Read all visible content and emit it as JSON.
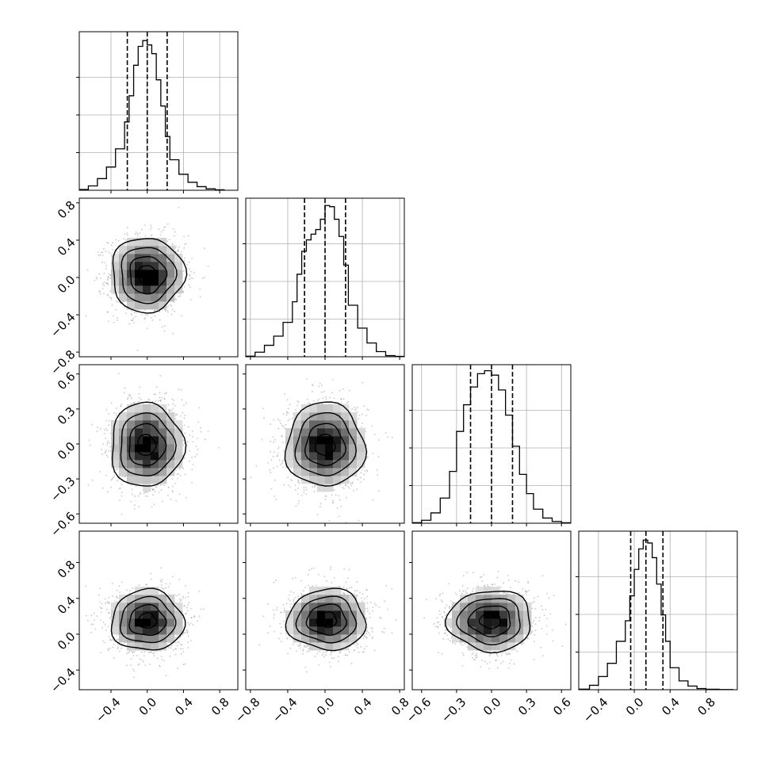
{
  "chart_data": {
    "type": "corner",
    "n_params": 4,
    "grid": true,
    "colors": {
      "line": "#000000",
      "points": "#9a9a9a",
      "grid": "#b0b0b0"
    },
    "quantile_lines": "dashed",
    "histograms": [
      {
        "param": 0,
        "xlim": [
          -0.75,
          1.0
        ],
        "quantiles": [
          -0.22,
          0.0,
          0.22
        ],
        "bin_edges": [
          -0.75,
          -0.65,
          -0.55,
          -0.45,
          -0.35,
          -0.25,
          -0.2,
          -0.15,
          -0.1,
          -0.05,
          0.0,
          0.05,
          0.1,
          0.15,
          0.2,
          0.25,
          0.35,
          0.45,
          0.55,
          0.65,
          0.75,
          0.85
        ],
        "counts": [
          5,
          30,
          80,
          160,
          285,
          470,
          650,
          860,
          990,
          1030,
          1000,
          940,
          760,
          580,
          370,
          210,
          110,
          55,
          25,
          10,
          3
        ],
        "ymax": 1080
      },
      {
        "param": 1,
        "xlim": [
          -0.85,
          0.85
        ],
        "quantiles": [
          -0.22,
          0.0,
          0.22
        ],
        "bin_edges": [
          -0.85,
          -0.75,
          -0.65,
          -0.55,
          -0.45,
          -0.35,
          -0.3,
          -0.25,
          -0.2,
          -0.15,
          -0.1,
          -0.05,
          0.0,
          0.05,
          0.1,
          0.15,
          0.2,
          0.25,
          0.35,
          0.45,
          0.55,
          0.65,
          0.75,
          0.85
        ],
        "counts": [
          5,
          40,
          100,
          180,
          300,
          480,
          720,
          920,
          1020,
          1070,
          1110,
          1200,
          1320,
          1310,
          1200,
          1050,
          800,
          450,
          250,
          120,
          45,
          10,
          3
        ],
        "ymax": 1370
      },
      {
        "param": 2,
        "xlim": [
          -0.68,
          0.68
        ],
        "quantiles": [
          -0.18,
          0.0,
          0.18
        ],
        "bin_edges": [
          -0.68,
          -0.6,
          -0.52,
          -0.44,
          -0.36,
          -0.3,
          -0.24,
          -0.18,
          -0.12,
          -0.06,
          0.0,
          0.06,
          0.12,
          0.18,
          0.24,
          0.3,
          0.36,
          0.44,
          0.52,
          0.6,
          0.68
        ],
        "counts": [
          4,
          20,
          70,
          170,
          350,
          620,
          800,
          920,
          1010,
          1030,
          1000,
          900,
          730,
          520,
          330,
          200,
          95,
          35,
          12,
          3
        ],
        "ymax": 1060
      },
      {
        "param": 3,
        "xlim": [
          -0.62,
          1.15
        ],
        "quantiles": [
          -0.04,
          0.13,
          0.32
        ],
        "bin_edges": [
          -0.62,
          -0.5,
          -0.4,
          -0.3,
          -0.2,
          -0.1,
          -0.05,
          0.0,
          0.05,
          0.1,
          0.15,
          0.2,
          0.25,
          0.3,
          0.35,
          0.4,
          0.5,
          0.6,
          0.7,
          0.8,
          0.95,
          1.1
        ],
        "counts": [
          4,
          30,
          90,
          180,
          330,
          470,
          640,
          820,
          960,
          1020,
          1000,
          900,
          720,
          510,
          330,
          150,
          60,
          25,
          8,
          3,
          1
        ],
        "ymax": 1070
      }
    ],
    "scatter_panels": [
      {
        "row": 1,
        "col": 0,
        "center": [
          0.0,
          0.03
        ],
        "sigma": [
          0.2,
          0.2
        ]
      },
      {
        "row": 2,
        "col": 0,
        "center": [
          -0.01,
          -0.01
        ],
        "sigma": [
          0.2,
          0.18
        ]
      },
      {
        "row": 2,
        "col": 1,
        "center": [
          0.0,
          -0.01
        ],
        "sigma": [
          0.21,
          0.18
        ]
      },
      {
        "row": 3,
        "col": 0,
        "center": [
          0.0,
          0.15
        ],
        "sigma": [
          0.2,
          0.17
        ]
      },
      {
        "row": 3,
        "col": 1,
        "center": [
          0.02,
          0.16
        ],
        "sigma": [
          0.21,
          0.17
        ]
      },
      {
        "row": 3,
        "col": 2,
        "center": [
          -0.01,
          0.15
        ],
        "sigma": [
          0.18,
          0.17
        ]
      }
    ],
    "contour_levels_sigma": [
      0.5,
      1.0,
      1.5,
      2.0
    ],
    "axes": [
      {
        "param": 0,
        "lim": [
          -0.75,
          1.0
        ],
        "ticks": [
          -0.4,
          0.0,
          0.4,
          0.8
        ],
        "tick_labels": [
          "−0.4",
          "0.0",
          "0.4",
          "0.8"
        ]
      },
      {
        "param": 1,
        "lim": [
          -0.85,
          0.85
        ],
        "ticks": [
          -0.8,
          -0.4,
          0.0,
          0.4,
          0.8
        ],
        "tick_labels": [
          "−0.8",
          "−0.4",
          "0.0",
          "0.4",
          "0.8"
        ]
      },
      {
        "param": 2,
        "lim": [
          -0.68,
          0.68
        ],
        "ticks": [
          -0.6,
          -0.3,
          0.0,
          0.3,
          0.6
        ],
        "tick_labels": [
          "−0.6",
          "−0.3",
          "0.0",
          "0.3",
          "0.6"
        ]
      },
      {
        "param": 3,
        "lim": [
          -0.62,
          1.15
        ],
        "ticks": [
          -0.4,
          0.0,
          0.4,
          0.8
        ],
        "tick_labels": [
          "−0.4",
          "0.0",
          "0.4",
          "0.8"
        ]
      }
    ]
  }
}
